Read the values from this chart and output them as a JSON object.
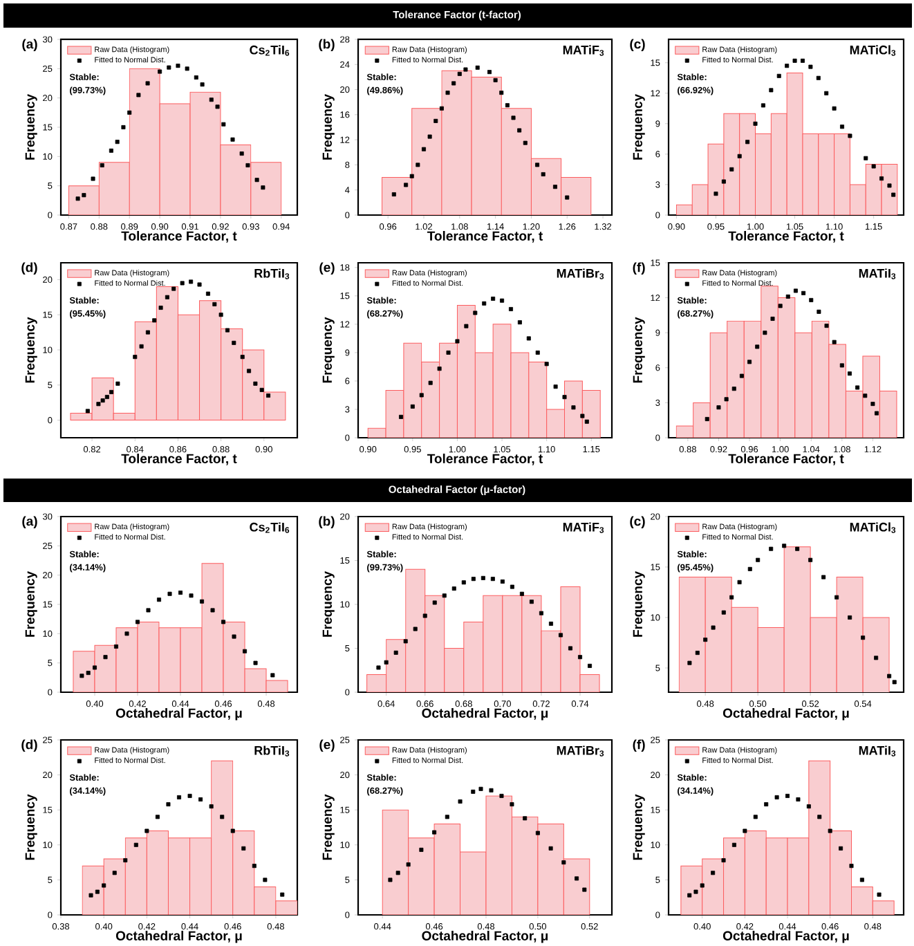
{
  "chart_data": [
    {
      "type": "other",
      "title": "Tolerance Factor (t-factor)"
    },
    {
      "type": "histogram",
      "xlabel": "Tolerance Factor, t",
      "ylabel": "Frequency",
      "legend": "top left",
      "marker": "square",
      "annotations": [
        "(a)",
        "Cs$_{2}$TiI$_{6}$",
        "Stable:",
        "(99.73%)"
      ],
      "xlim": [
        0.8674,
        0.9453
      ],
      "ylim": [
        0,
        30
      ],
      "xticks": [
        0.87,
        0.88,
        0.89,
        {
          "value": 0.9,
          "label": "0.90"
        },
        0.91,
        0.92,
        0.93,
        0.94
      ],
      "yticks": [
        0,
        5,
        10,
        15,
        20,
        25,
        30
      ],
      "series": [
        {
          "type": "histogram",
          "name": "Raw Data (Histogram)",
          "color": "#f9cdd0",
          "bins": [
            0.87,
            0.88,
            0.89,
            0.9,
            0.91,
            0.92,
            0.93,
            0.94
          ],
          "values": [
            5,
            9,
            25,
            19,
            21,
            12,
            9
          ]
        },
        {
          "type": "scatter",
          "name": "Fitted to Normal Dist.",
          "color": "#000000",
          "x": [
            0.873,
            0.875,
            0.878,
            0.881,
            0.884,
            0.886,
            0.888,
            0.89,
            0.893,
            0.896,
            0.9,
            0.903,
            0.906,
            0.909,
            0.912,
            0.914,
            0.917,
            0.919,
            0.921,
            0.924,
            0.927,
            0.929,
            0.932,
            0.934
          ],
          "values": [
            2.8,
            3.4,
            6.2,
            8.5,
            11,
            12.5,
            15,
            17.5,
            20.5,
            22.5,
            24.5,
            25.2,
            25.5,
            25,
            23.5,
            22.3,
            19.7,
            18.5,
            15.5,
            12.9,
            10.5,
            8.5,
            6,
            4.7
          ]
        }
      ]
    },
    {
      "type": "histogram",
      "xlabel": "Tolerance Factor, t",
      "ylabel": "Frequency",
      "legend": "top left",
      "marker": "square",
      "annotations": [
        "(b)",
        "MATiF$_{3}$",
        "Stable:",
        "(49.86%)"
      ],
      "xlim": [
        0.91,
        1.335
      ],
      "ylim": [
        0,
        28
      ],
      "xticks": [
        0.96,
        1.02,
        1.08,
        1.14,
        {
          "value": 1.2,
          "label": "1.20"
        },
        1.26,
        1.32
      ],
      "yticks": [
        0,
        4,
        8,
        12,
        16,
        20,
        24,
        28
      ],
      "series": [
        {
          "type": "histogram",
          "name": "Raw Data (Histogram)",
          "color": "#f9cdd0",
          "bins": [
            0.95,
            1.0,
            1.05,
            1.1,
            1.15,
            1.2,
            1.25,
            1.3
          ],
          "values": [
            6,
            17,
            23,
            22,
            17,
            9,
            6
          ]
        },
        {
          "type": "scatter",
          "name": "Fitted to Normal Dist.",
          "color": "#000000",
          "x": [
            0.97,
            0.99,
            1.0,
            1.01,
            1.02,
            1.03,
            1.04,
            1.05,
            1.06,
            1.07,
            1.08,
            1.09,
            1.11,
            1.13,
            1.14,
            1.15,
            1.16,
            1.17,
            1.18,
            1.19,
            1.21,
            1.22,
            1.24,
            1.26
          ],
          "values": [
            3.3,
            4.8,
            6.2,
            8,
            10.5,
            12.5,
            15,
            17,
            19.5,
            21,
            22.5,
            23.2,
            23.5,
            22.8,
            21.5,
            19.5,
            17.5,
            15.5,
            13.5,
            11.5,
            8,
            6.5,
            4.5,
            2.8
          ]
        }
      ]
    },
    {
      "type": "histogram",
      "xlabel": "Tolerance Factor, t",
      "ylabel": "Frequency",
      "legend": "top left",
      "marker": "square",
      "annotations": [
        "(c)",
        "MATiCl$_{3}$",
        "Stable:",
        "(66.92%)"
      ],
      "xlim": [
        0.89,
        1.188
      ],
      "ylim": [
        0,
        17.3
      ],
      "xticks": [
        {
          "value": 0.9,
          "label": "0.90"
        },
        0.95,
        {
          "value": 1,
          "label": "1.00"
        },
        1.05,
        {
          "value": 1.1,
          "label": "1.10"
        },
        1.15
      ],
      "yticks": [
        0,
        3,
        6,
        9,
        12,
        15
      ],
      "series": [
        {
          "type": "histogram",
          "name": "Raw Data (Histogram)",
          "color": "#f9cdd0",
          "bins": [
            0.9,
            0.92,
            0.94,
            0.96,
            0.98,
            1.0,
            1.02,
            1.04,
            1.06,
            1.08,
            1.1,
            1.12,
            1.14,
            1.16,
            1.18
          ],
          "values": [
            1,
            3,
            7,
            10,
            10,
            8,
            10,
            14,
            8,
            8,
            8,
            3,
            5,
            5
          ]
        },
        {
          "type": "scatter",
          "name": "Fitted to Normal Dist.",
          "color": "#000000",
          "x": [
            0.95,
            0.96,
            0.97,
            0.98,
            0.99,
            1.0,
            1.01,
            1.02,
            1.03,
            1.04,
            1.05,
            1.06,
            1.07,
            1.08,
            1.09,
            1.1,
            1.11,
            1.12,
            1.14,
            1.15,
            1.16,
            1.17,
            1.175
          ],
          "values": [
            2.1,
            3.3,
            4.5,
            5.8,
            7.2,
            9,
            10.8,
            12.3,
            13.7,
            14.7,
            15.2,
            15.2,
            14.6,
            13.5,
            12,
            10.5,
            8.7,
            7.8,
            5.6,
            4.8,
            3.6,
            2.9,
            2.0
          ]
        }
      ]
    },
    {
      "type": "histogram",
      "xlabel": "Tolerance Factor, t",
      "ylabel": "Frequency",
      "legend": "top left",
      "marker": "square",
      "annotations": [
        "(d)",
        "RbTiI$_{3}$",
        "Stable:",
        "(95.45%)"
      ],
      "xlim": [
        0.8055,
        0.9155
      ],
      "ylim": [
        -2.5,
        22.4
      ],
      "xticks": [
        0.82,
        0.84,
        0.86,
        0.88,
        {
          "value": 0.9,
          "label": "0.90"
        }
      ],
      "yticks": [
        0,
        5,
        10,
        15,
        20
      ],
      "series": [
        {
          "type": "histogram",
          "name": "Raw Data (Histogram)",
          "color": "#f9cdd0",
          "bins": [
            0.81,
            0.82,
            0.83,
            0.84,
            0.85,
            0.86,
            0.87,
            0.88,
            0.89,
            0.9,
            0.91
          ],
          "values": [
            1,
            6,
            1,
            14,
            19,
            15,
            17,
            13,
            10,
            4
          ]
        },
        {
          "type": "scatter",
          "name": "Fitted to Normal Dist.",
          "color": "#000000",
          "x": [
            0.818,
            0.823,
            0.825,
            0.827,
            0.829,
            0.832,
            0.84,
            0.843,
            0.846,
            0.849,
            0.852,
            0.855,
            0.858,
            0.862,
            0.866,
            0.87,
            0.874,
            0.877,
            0.88,
            0.883,
            0.886,
            0.89,
            0.893,
            0.896,
            0.899,
            0.902
          ],
          "values": [
            1.3,
            2.3,
            2.8,
            3.3,
            4,
            5.2,
            9,
            10.5,
            12.5,
            14.2,
            16,
            17.5,
            18.7,
            19.5,
            19.7,
            19.3,
            18,
            16.5,
            15,
            12.8,
            11,
            9,
            7,
            5.2,
            4.3,
            3.5
          ]
        }
      ]
    },
    {
      "type": "histogram",
      "xlabel": "Tolerance Factor, t",
      "ylabel": "Frequency",
      "legend": "top left",
      "marker": "square",
      "annotations": [
        "(e)",
        "MATiBr$_{3}$",
        "Stable:",
        "(68.27%)"
      ],
      "xlim": [
        0.889,
        1.173
      ],
      "ylim": [
        0,
        18.5
      ],
      "xticks": [
        {
          "value": 0.9,
          "label": "0.90"
        },
        0.95,
        {
          "value": 1,
          "label": "1.00"
        },
        1.05,
        {
          "value": 1.1,
          "label": "1.10"
        },
        1.15
      ],
      "yticks": [
        0,
        3,
        6,
        9,
        12,
        15,
        18
      ],
      "series": [
        {
          "type": "histogram",
          "name": "Raw Data (Histogram)",
          "color": "#f9cdd0",
          "bins": [
            0.9,
            0.92,
            0.94,
            0.96,
            0.98,
            1.0,
            1.02,
            1.04,
            1.06,
            1.08,
            1.1,
            1.12,
            1.14,
            1.16
          ],
          "values": [
            1,
            5,
            10,
            8,
            10,
            14,
            9,
            12,
            9,
            8,
            3,
            6,
            5
          ]
        },
        {
          "type": "scatter",
          "name": "Fitted to Normal Dist.",
          "color": "#000000",
          "x": [
            0.937,
            0.95,
            0.96,
            0.97,
            0.98,
            0.99,
            1.0,
            1.01,
            1.02,
            1.03,
            1.04,
            1.05,
            1.06,
            1.07,
            1.08,
            1.09,
            1.1,
            1.11,
            1.12,
            1.13,
            1.14,
            1.145
          ],
          "values": [
            2.2,
            3.3,
            4.5,
            5.8,
            7.3,
            9,
            10.2,
            11.8,
            13.2,
            14.2,
            14.7,
            14.5,
            13.6,
            12.2,
            10.5,
            9,
            7.8,
            5.4,
            4.3,
            3.2,
            2.3,
            1.7
          ]
        }
      ]
    },
    {
      "type": "histogram",
      "xlabel": "Tolerance Factor, t",
      "ylabel": "Frequency",
      "legend": "top left",
      "marker": "square",
      "annotations": [
        "(f)",
        "MATiI$_{3}$",
        "Stable:",
        "(68.27%)"
      ],
      "xlim": [
        0.855,
        1.16
      ],
      "ylim": [
        0,
        15
      ],
      "xticks": [
        0.88,
        0.92,
        0.96,
        {
          "value": 1,
          "label": "1.00"
        },
        1.04,
        1.08,
        1.12
      ],
      "yticks": [
        0,
        3,
        6,
        9,
        12,
        15
      ],
      "series": [
        {
          "type": "histogram",
          "name": "Raw Data (Histogram)",
          "color": "#f9cdd0",
          "bins": [
            0.865,
            0.887,
            0.909,
            0.931,
            0.953,
            0.975,
            0.997,
            1.019,
            1.041,
            1.063,
            1.085,
            1.107,
            1.129,
            1.151
          ],
          "values": [
            1,
            3,
            9,
            10,
            10,
            13,
            12,
            9,
            10,
            8,
            4,
            7,
            4
          ]
        },
        {
          "type": "scatter",
          "name": "Fitted to Normal Dist.",
          "color": "#000000",
          "x": [
            0.905,
            0.92,
            0.93,
            0.94,
            0.95,
            0.96,
            0.97,
            0.98,
            0.99,
            1.0,
            1.01,
            1.02,
            1.03,
            1.04,
            1.05,
            1.06,
            1.07,
            1.08,
            1.09,
            1.1,
            1.11,
            1.12,
            1.125
          ],
          "values": [
            1.6,
            2.6,
            3.3,
            4.2,
            5.3,
            6.5,
            7.8,
            9,
            10.2,
            11.3,
            12.1,
            12.6,
            12.4,
            11.8,
            10.8,
            9.6,
            8.2,
            6.2,
            5.5,
            4.3,
            3.6,
            2.9,
            2.1
          ]
        }
      ]
    },
    {
      "type": "other",
      "title": "Octahedral Factor (μ-factor)"
    },
    {
      "type": "histogram",
      "xlabel": "Octahedral Factor, μ",
      "ylabel": "Frequency",
      "legend": "top left",
      "marker": "square",
      "annotations": [
        "(a)",
        "Cs$_{2}$TiI$_{6}$",
        "Stable:",
        "(34.14%)"
      ],
      "xlim": [
        0.3842,
        0.4945
      ],
      "ylim": [
        0,
        30
      ],
      "xticks": [
        {
          "value": 0.4,
          "label": "0.40"
        },
        0.42,
        0.44,
        0.46,
        0.48
      ],
      "yticks": [
        0,
        5,
        10,
        15,
        20,
        25,
        30
      ],
      "series": [
        {
          "type": "histogram",
          "name": "Raw Data (Histogram)",
          "color": "#f9cdd0",
          "bins": [
            0.39,
            0.4,
            0.41,
            0.42,
            0.43,
            0.44,
            0.45,
            0.46,
            0.47,
            0.48,
            0.49
          ],
          "values": [
            7,
            8,
            11,
            12,
            11,
            11,
            22,
            12,
            4,
            2
          ]
        },
        {
          "type": "scatter",
          "name": "Fitted to Normal Dist.",
          "color": "#000000",
          "x": [
            0.394,
            0.397,
            0.4,
            0.405,
            0.41,
            0.415,
            0.42,
            0.425,
            0.43,
            0.435,
            0.44,
            0.445,
            0.45,
            0.455,
            0.46,
            0.465,
            0.47,
            0.475,
            0.483
          ],
          "values": [
            2.8,
            3.3,
            4.2,
            6,
            7.8,
            10,
            12,
            14,
            15.8,
            16.8,
            17,
            16.5,
            15.5,
            14,
            12,
            9.5,
            7,
            5,
            2.9
          ]
        }
      ]
    },
    {
      "type": "histogram",
      "xlabel": "Octahedral Factor, μ",
      "ylabel": "Frequency",
      "legend": "top left",
      "marker": "square",
      "annotations": [
        "(b)",
        "MATiF$_{3}$",
        "Stable:",
        "(99.73%)"
      ],
      "xlim": [
        0.6255,
        0.7564
      ],
      "ylim": [
        0,
        20
      ],
      "xticks": [
        0.64,
        0.66,
        0.68,
        {
          "value": 0.7,
          "label": "0.70"
        },
        0.72,
        0.74
      ],
      "yticks": [
        0,
        5,
        10,
        15,
        20
      ],
      "series": [
        {
          "type": "histogram",
          "name": "Raw Data (Histogram)",
          "color": "#f9cdd0",
          "bins": [
            0.63,
            0.64,
            0.65,
            0.66,
            0.67,
            0.68,
            0.69,
            0.7,
            0.71,
            0.72,
            0.73,
            0.74,
            0.75
          ],
          "values": [
            2,
            6,
            14,
            11,
            5,
            8,
            11,
            11,
            11,
            7,
            12,
            2
          ]
        },
        {
          "type": "scatter",
          "name": "Fitted to Normal Dist.",
          "color": "#000000",
          "x": [
            0.636,
            0.64,
            0.645,
            0.65,
            0.655,
            0.66,
            0.665,
            0.67,
            0.675,
            0.68,
            0.685,
            0.69,
            0.695,
            0.7,
            0.705,
            0.71,
            0.715,
            0.72,
            0.725,
            0.73,
            0.735,
            0.74,
            0.745
          ],
          "values": [
            2.8,
            3.4,
            4.5,
            5.8,
            7.2,
            8.7,
            10.2,
            11,
            11.8,
            12.5,
            12.9,
            13,
            12.9,
            12.6,
            12,
            11.2,
            10.3,
            9,
            7.8,
            6.5,
            5,
            4,
            3
          ]
        }
      ]
    },
    {
      "type": "histogram",
      "xlabel": "Octahedral Factor, μ",
      "ylabel": "Frequency",
      "legend": "top left",
      "marker": "square",
      "annotations": [
        "(c)",
        "MATiCl$_{3}$",
        "Stable:",
        "(95.45%)"
      ],
      "xlim": [
        0.466,
        0.5555
      ],
      "ylim": [
        2.6,
        20
      ],
      "xticks": [
        0.48,
        {
          "value": 0.5,
          "label": "0.50"
        },
        0.52,
        0.54
      ],
      "yticks": [
        5,
        10,
        15,
        20
      ],
      "series": [
        {
          "type": "histogram",
          "name": "Raw Data (Histogram)",
          "color": "#f9cdd0",
          "bins": [
            0.47,
            0.48,
            0.49,
            0.5,
            0.51,
            0.52,
            0.53,
            0.54,
            0.55
          ],
          "values": [
            14,
            14,
            11,
            9,
            17,
            10,
            14,
            10
          ]
        },
        {
          "type": "scatter",
          "name": "Fitted to Normal Dist.",
          "color": "#000000",
          "x": [
            0.474,
            0.477,
            0.48,
            0.483,
            0.487,
            0.49,
            0.493,
            0.497,
            0.5,
            0.505,
            0.51,
            0.515,
            0.52,
            0.525,
            0.53,
            0.535,
            0.54,
            0.545,
            0.55,
            0.552
          ],
          "values": [
            5.5,
            6.5,
            7.8,
            9,
            10.5,
            12,
            13.5,
            14.8,
            15.7,
            16.8,
            17.1,
            16.8,
            15.7,
            14,
            12,
            10,
            8,
            6,
            4.2,
            3.6
          ]
        }
      ]
    },
    {
      "type": "histogram",
      "xlabel": "Octahedral Factor, μ",
      "ylabel": "Frequency",
      "legend": "top left",
      "marker": "square",
      "annotations": [
        "(d)",
        "RbTiI$_{3}$",
        "Stable:",
        "(34.14%)"
      ],
      "xlim": [
        0.38,
        0.49
      ],
      "ylim": [
        0,
        25
      ],
      "xticks": [
        0.38,
        {
          "value": 0.4,
          "label": "0.40"
        },
        0.42,
        0.44,
        0.46,
        0.48
      ],
      "yticks": [
        0,
        5,
        10,
        15,
        20,
        25
      ],
      "series": [
        {
          "type": "histogram",
          "name": "Raw Data (Histogram)",
          "color": "#f9cdd0",
          "bins": [
            0.39,
            0.4,
            0.41,
            0.42,
            0.43,
            0.44,
            0.45,
            0.46,
            0.47,
            0.48,
            0.49
          ],
          "values": [
            7,
            8,
            11,
            12,
            11,
            11,
            22,
            12,
            4,
            2
          ]
        },
        {
          "type": "scatter",
          "name": "Fitted to Normal Dist.",
          "color": "#000000",
          "x": [
            0.394,
            0.397,
            0.4,
            0.405,
            0.41,
            0.415,
            0.42,
            0.425,
            0.43,
            0.435,
            0.44,
            0.445,
            0.45,
            0.455,
            0.46,
            0.465,
            0.47,
            0.475,
            0.483
          ],
          "values": [
            2.8,
            3.3,
            4.2,
            6,
            7.8,
            10,
            12,
            14,
            15.8,
            16.8,
            17,
            16.5,
            15.5,
            14,
            12,
            9.5,
            7,
            5,
            2.9
          ]
        }
      ]
    },
    {
      "type": "histogram",
      "xlabel": "Octahedral Factor, μ",
      "ylabel": "Frequency",
      "legend": "top left",
      "marker": "square",
      "annotations": [
        "(e)",
        "MATiBr$_{3}$",
        "Stable:",
        "(68.27%)"
      ],
      "xlim": [
        0.4306,
        0.5286
      ],
      "ylim": [
        0,
        25
      ],
      "xticks": [
        0.44,
        0.46,
        0.48,
        {
          "value": 0.5,
          "label": "0.50"
        },
        0.52
      ],
      "yticks": [
        0,
        5,
        10,
        15,
        20,
        25
      ],
      "series": [
        {
          "type": "histogram",
          "name": "Raw Data (Histogram)",
          "color": "#f9cdd0",
          "bins": [
            0.44,
            0.45,
            0.46,
            0.47,
            0.48,
            0.49,
            0.5,
            0.51,
            0.52
          ],
          "values": [
            15,
            11,
            13,
            9,
            17,
            14,
            13,
            8
          ]
        },
        {
          "type": "scatter",
          "name": "Fitted to Normal Dist.",
          "color": "#000000",
          "x": [
            0.443,
            0.446,
            0.45,
            0.455,
            0.46,
            0.465,
            0.47,
            0.475,
            0.478,
            0.482,
            0.486,
            0.49,
            0.495,
            0.5,
            0.505,
            0.51,
            0.515,
            0.518
          ],
          "values": [
            5,
            6,
            7.2,
            9.3,
            11.8,
            14,
            16.2,
            17.6,
            18,
            17.8,
            17,
            15.8,
            13.8,
            11.7,
            9.5,
            7.5,
            5.2,
            3.6
          ]
        }
      ]
    },
    {
      "type": "histogram",
      "xlabel": "Octahedral Factor, μ",
      "ylabel": "Frequency",
      "legend": "top left",
      "marker": "square",
      "annotations": [
        "(f)",
        "MATiI$_{3}$",
        "Stable:",
        "(34.14%)"
      ],
      "xlim": [
        0.3842,
        0.4945
      ],
      "ylim": [
        0,
        25
      ],
      "xticks": [
        {
          "value": 0.4,
          "label": "0.40"
        },
        0.42,
        0.44,
        0.46,
        0.48
      ],
      "yticks": [
        0,
        5,
        10,
        15,
        20,
        25
      ],
      "series": [
        {
          "type": "histogram",
          "name": "Raw Data (Histogram)",
          "color": "#f9cdd0",
          "bins": [
            0.39,
            0.4,
            0.41,
            0.42,
            0.43,
            0.44,
            0.45,
            0.46,
            0.47,
            0.48,
            0.49
          ],
          "values": [
            7,
            8,
            11,
            12,
            11,
            11,
            22,
            12,
            4,
            2
          ]
        },
        {
          "type": "scatter",
          "name": "Fitted to Normal Dist.",
          "color": "#000000",
          "x": [
            0.394,
            0.397,
            0.4,
            0.405,
            0.41,
            0.415,
            0.42,
            0.425,
            0.43,
            0.435,
            0.44,
            0.445,
            0.45,
            0.455,
            0.46,
            0.465,
            0.47,
            0.475,
            0.483
          ],
          "values": [
            2.8,
            3.3,
            4.2,
            6,
            7.8,
            10,
            12,
            14,
            15.8,
            16.8,
            17,
            16.5,
            15.5,
            14,
            12,
            9.5,
            7,
            5,
            2.9
          ]
        }
      ]
    }
  ]
}
